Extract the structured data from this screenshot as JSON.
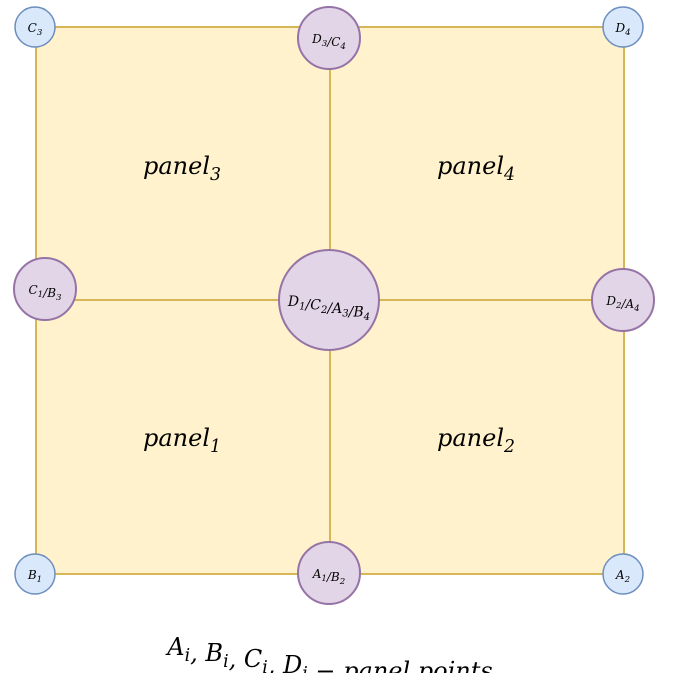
{
  "colors": {
    "panel_fill": "#fff2cc",
    "panel_stroke": "#d6b656",
    "corner_node_fill": "#dae8fc",
    "corner_node_stroke": "#6c8ebf",
    "shared_node_fill": "#e1d5e7",
    "shared_node_stroke": "#9673a6"
  },
  "panels": [
    {
      "id": "panel3",
      "base": "panel",
      "sub": "3"
    },
    {
      "id": "panel4",
      "base": "panel",
      "sub": "4"
    },
    {
      "id": "panel1",
      "base": "panel",
      "sub": "1"
    },
    {
      "id": "panel2",
      "base": "panel",
      "sub": "2"
    }
  ],
  "nodes": {
    "c3": [
      {
        "t": "C",
        "s": "3"
      }
    ],
    "d3c4": [
      {
        "t": "D",
        "s": "3"
      },
      {
        "t": "/C",
        "s": "4"
      }
    ],
    "d4": [
      {
        "t": "D",
        "s": "4"
      }
    ],
    "c1b3": [
      {
        "t": "C",
        "s": "1"
      },
      {
        "t": "/B",
        "s": "3"
      }
    ],
    "center": [
      {
        "t": "D",
        "s": "1"
      },
      {
        "t": "/C",
        "s": "2"
      },
      {
        "t": "/A",
        "s": "3"
      },
      {
        "t": "/B",
        "s": "4"
      }
    ],
    "d2a4": [
      {
        "t": "D",
        "s": "2"
      },
      {
        "t": "/A",
        "s": "4"
      }
    ],
    "b1": [
      {
        "t": "B",
        "s": "1"
      }
    ],
    "a1b2": [
      {
        "t": "A",
        "s": "1"
      },
      {
        "t": "/B",
        "s": "2"
      }
    ],
    "a2": [
      {
        "t": "A",
        "s": "2"
      }
    ]
  },
  "caption": [
    {
      "t": "A",
      "s": "i"
    },
    {
      "t": ", B",
      "s": "i"
    },
    {
      "t": ", C",
      "s": "i"
    },
    {
      "t": ", D",
      "s": "i"
    },
    {
      "t": " − panel points",
      "s": ""
    }
  ]
}
